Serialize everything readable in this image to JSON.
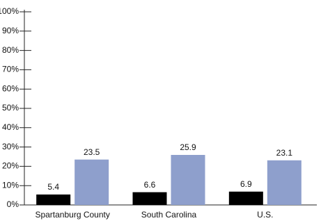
{
  "chart_data": {
    "type": "bar",
    "categories": [
      "Spartanburg County",
      "South Carolina",
      "U.S."
    ],
    "series": [
      {
        "color": "#000000",
        "values": [
          5.4,
          6.6,
          6.9
        ]
      },
      {
        "color": "#8e9fcc",
        "values": [
          23.5,
          25.9,
          23.1
        ]
      }
    ],
    "ylim": [
      0,
      100
    ],
    "yticks": [
      {
        "value": 0,
        "label": "0%"
      },
      {
        "value": 10,
        "label": "10%"
      },
      {
        "value": 20,
        "label": "20%"
      },
      {
        "value": 30,
        "label": "30%"
      },
      {
        "value": 40,
        "label": "40%"
      },
      {
        "value": 50,
        "label": "50%"
      },
      {
        "value": 60,
        "label": "60%"
      },
      {
        "value": 70,
        "label": "70%"
      },
      {
        "value": 80,
        "label": "80%"
      },
      {
        "value": 90,
        "label": "90%"
      },
      {
        "value": 100,
        "label": "100%"
      }
    ]
  }
}
